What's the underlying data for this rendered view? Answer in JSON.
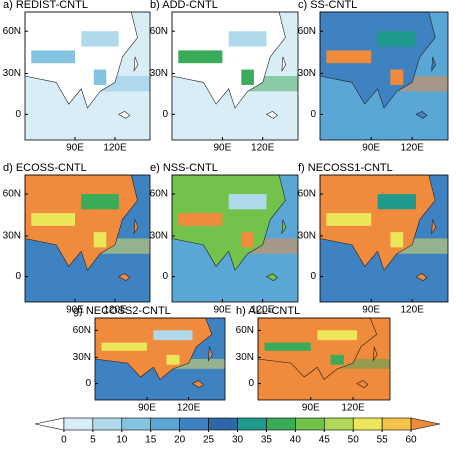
{
  "panels": [
    {
      "title": "a) REDIST-CNTL",
      "lat_labels": [
        "60N",
        "30N",
        "0"
      ],
      "lon_labels": [
        "90E",
        "120E"
      ]
    },
    {
      "title": "b) ADD-CNTL",
      "lat_labels": [
        "60N",
        "30N",
        "0"
      ],
      "lon_labels": [
        "90E",
        "120E"
      ]
    },
    {
      "title": "c) SS-CNTL",
      "lat_labels": [
        "60N",
        "30N",
        "0"
      ],
      "lon_labels": [
        "90E",
        "120E"
      ]
    },
    {
      "title": "d) ECOSS-CNTL",
      "lat_labels": [
        "60N",
        "30N",
        "0"
      ],
      "lon_labels": [
        "90E",
        "120E"
      ]
    },
    {
      "title": "e) NSS-CNTL",
      "lat_labels": [
        "60N",
        "30N",
        "0"
      ],
      "lon_labels": [
        "90E",
        "120E"
      ]
    },
    {
      "title": "f) NECOSS1-CNTL",
      "lat_labels": [
        "60N",
        "30N",
        "0"
      ],
      "lon_labels": [
        "90E",
        "120E"
      ]
    },
    {
      "title": "g) NECOSS2-CNTL",
      "lat_labels": [
        "60N",
        "30N",
        "0"
      ],
      "lon_labels": [
        "90E",
        "120E"
      ]
    },
    {
      "title": "h) ALL-CNTL",
      "lat_labels": [
        "60N",
        "30N",
        "0"
      ],
      "lon_labels": [
        "90E",
        "120E"
      ]
    }
  ],
  "colorbar": {
    "ticks": [
      0,
      5,
      10,
      15,
      20,
      25,
      30,
      35,
      40,
      45,
      50,
      55,
      60
    ],
    "colors": [
      "#ffffff",
      "#d8edf6",
      "#b0daec",
      "#85c3e2",
      "#5aa6d4",
      "#3f82c2",
      "#2f66a8",
      "#1f9a8c",
      "#3aab58",
      "#72c24c",
      "#b0d95a",
      "#ece65a",
      "#f4c34a",
      "#f08a3c"
    ]
  }
}
